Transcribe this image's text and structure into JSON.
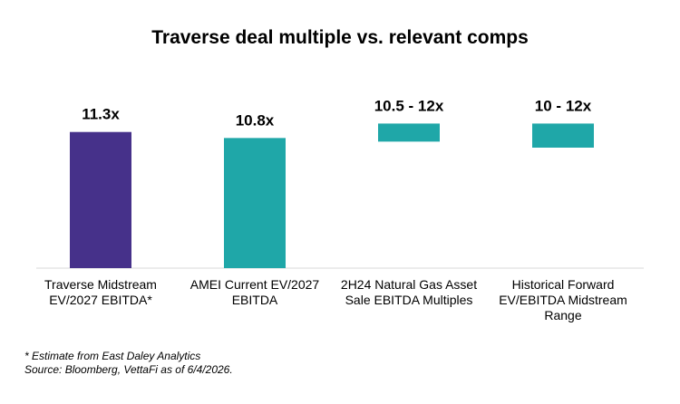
{
  "title": "Traverse deal multiple vs. relevant comps",
  "chart_data": {
    "type": "bar",
    "title": "Traverse deal multiple vs. relevant comps",
    "xlabel": "",
    "ylabel": "",
    "ylim": [
      0,
      14
    ],
    "grid": false,
    "colors": [
      "#46318a",
      "#1fa7a8",
      "#1fa7a8",
      "#1fa7a8"
    ],
    "categories": [
      "Traverse Midstream EV/2027 EBITDA*",
      "AMEI Current EV/2027 EBITDA",
      "2H24 Natural Gas Asset Sale EBITDA Multiples",
      "Historical Forward EV/EBITDA Midstream Range"
    ],
    "bars": [
      {
        "kind": "value",
        "value": 11.3,
        "label": "11.3x"
      },
      {
        "kind": "value",
        "value": 10.8,
        "label": "10.8x"
      },
      {
        "kind": "range",
        "low": 10.5,
        "high": 12,
        "label": "10.5 - 12x"
      },
      {
        "kind": "range",
        "low": 10,
        "high": 12,
        "label": "10 - 12x"
      }
    ]
  },
  "notes": {
    "line1": "* Estimate from East Daley Analytics",
    "line2": "Source: Bloomberg, VettaFi as of 6/4/2026."
  }
}
